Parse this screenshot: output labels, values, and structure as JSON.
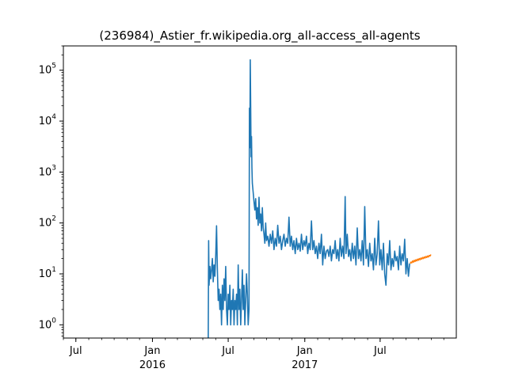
{
  "chart_data": {
    "type": "line",
    "title": "(236984)_Astier_fr.wikipedia.org_all-access_all-agents",
    "xlabel": "",
    "ylabel": "",
    "yscale": "log",
    "xlim": [
      "2015-06-01",
      "2017-12-31"
    ],
    "ylim": [
      0.55,
      300000
    ],
    "grid": false,
    "x_ticks": [
      {
        "date": "2015-07-01",
        "label": "Jul",
        "sublabel": ""
      },
      {
        "date": "2016-01-01",
        "label": "Jan",
        "sublabel": "2016"
      },
      {
        "date": "2016-07-01",
        "label": "Jul",
        "sublabel": ""
      },
      {
        "date": "2017-01-01",
        "label": "Jan",
        "sublabel": "2017"
      },
      {
        "date": "2017-07-01",
        "label": "Jul",
        "sublabel": ""
      }
    ],
    "y_ticks": [
      {
        "value": 1,
        "base": "10",
        "exp": "0"
      },
      {
        "value": 10,
        "base": "10",
        "exp": "1"
      },
      {
        "value": 100,
        "base": "10",
        "exp": "2"
      },
      {
        "value": 1000,
        "base": "10",
        "exp": "3"
      },
      {
        "value": 10000,
        "base": "10",
        "exp": "4"
      },
      {
        "value": 100000,
        "base": "10",
        "exp": "5"
      }
    ],
    "series": [
      {
        "color": "#1f77b4",
        "points": [
          [
            "2016-05-14",
            0.5
          ],
          [
            "2016-05-15",
            45
          ],
          [
            "2016-05-16",
            6
          ],
          [
            "2016-05-18",
            14
          ],
          [
            "2016-05-20",
            8
          ],
          [
            "2016-05-22",
            12
          ],
          [
            "2016-05-24",
            20
          ],
          [
            "2016-05-26",
            7
          ],
          [
            "2016-05-28",
            15
          ],
          [
            "2016-05-30",
            9
          ],
          [
            "2016-06-01",
            22
          ],
          [
            "2016-06-03",
            88
          ],
          [
            "2016-06-05",
            12
          ],
          [
            "2016-06-07",
            3
          ],
          [
            "2016-06-09",
            5
          ],
          [
            "2016-06-11",
            2
          ],
          [
            "2016-06-13",
            4
          ],
          [
            "2016-06-15",
            1
          ],
          [
            "2016-06-17",
            6
          ],
          [
            "2016-06-19",
            2
          ],
          [
            "2016-06-21",
            8
          ],
          [
            "2016-06-23",
            3
          ],
          [
            "2016-06-25",
            14
          ],
          [
            "2016-06-27",
            2
          ],
          [
            "2016-06-29",
            1
          ],
          [
            "2016-07-01",
            4
          ],
          [
            "2016-07-03",
            2
          ],
          [
            "2016-07-05",
            6
          ],
          [
            "2016-07-07",
            1
          ],
          [
            "2016-07-09",
            3
          ],
          [
            "2016-07-11",
            2
          ],
          [
            "2016-07-13",
            5
          ],
          [
            "2016-07-15",
            1
          ],
          [
            "2016-07-17",
            3
          ],
          [
            "2016-07-19",
            2
          ],
          [
            "2016-07-21",
            4
          ],
          [
            "2016-07-23",
            1
          ],
          [
            "2016-07-25",
            15
          ],
          [
            "2016-07-27",
            2
          ],
          [
            "2016-07-29",
            5
          ],
          [
            "2016-07-31",
            1
          ],
          [
            "2016-08-02",
            3
          ],
          [
            "2016-08-04",
            12
          ],
          [
            "2016-08-06",
            2
          ],
          [
            "2016-08-08",
            6
          ],
          [
            "2016-08-10",
            1
          ],
          [
            "2016-08-12",
            3
          ],
          [
            "2016-08-14",
            10
          ],
          [
            "2016-08-16",
            4
          ],
          [
            "2016-08-18",
            1
          ],
          [
            "2016-08-20",
            2
          ],
          [
            "2016-08-21",
            18000
          ],
          [
            "2016-08-22",
            3000
          ],
          [
            "2016-08-23",
            160000
          ],
          [
            "2016-08-24",
            20000
          ],
          [
            "2016-08-25",
            2000
          ],
          [
            "2016-08-26",
            5000
          ],
          [
            "2016-08-27",
            1200
          ],
          [
            "2016-08-28",
            600
          ],
          [
            "2016-08-30",
            400
          ],
          [
            "2016-09-01",
            260
          ],
          [
            "2016-09-03",
            180
          ],
          [
            "2016-09-05",
            300
          ],
          [
            "2016-09-07",
            120
          ],
          [
            "2016-09-09",
            200
          ],
          [
            "2016-09-11",
            90
          ],
          [
            "2016-09-13",
            320
          ],
          [
            "2016-09-15",
            100
          ],
          [
            "2016-09-17",
            150
          ],
          [
            "2016-09-19",
            70
          ],
          [
            "2016-09-21",
            200
          ],
          [
            "2016-09-23",
            80
          ],
          [
            "2016-09-25",
            60
          ],
          [
            "2016-09-27",
            40
          ],
          [
            "2016-09-29",
            100
          ],
          [
            "2016-10-01",
            45
          ],
          [
            "2016-10-04",
            55
          ],
          [
            "2016-10-07",
            35
          ],
          [
            "2016-10-10",
            60
          ],
          [
            "2016-10-13",
            40
          ],
          [
            "2016-10-16",
            70
          ],
          [
            "2016-10-19",
            30
          ],
          [
            "2016-10-22",
            50
          ],
          [
            "2016-10-25",
            35
          ],
          [
            "2016-10-28",
            90
          ],
          [
            "2016-10-31",
            40
          ],
          [
            "2016-11-03",
            55
          ],
          [
            "2016-11-06",
            30
          ],
          [
            "2016-11-09",
            45
          ],
          [
            "2016-11-12",
            60
          ],
          [
            "2016-11-15",
            35
          ],
          [
            "2016-11-18",
            50
          ],
          [
            "2016-11-21",
            40
          ],
          [
            "2016-11-24",
            130
          ],
          [
            "2016-11-27",
            35
          ],
          [
            "2016-11-30",
            55
          ],
          [
            "2016-12-03",
            30
          ],
          [
            "2016-12-06",
            45
          ],
          [
            "2016-12-09",
            25
          ],
          [
            "2016-12-12",
            50
          ],
          [
            "2016-12-15",
            30
          ],
          [
            "2016-12-18",
            40
          ],
          [
            "2016-12-21",
            28
          ],
          [
            "2016-12-24",
            60
          ],
          [
            "2016-12-27",
            30
          ],
          [
            "2016-12-30",
            45
          ],
          [
            "2017-01-02",
            35
          ],
          [
            "2017-01-05",
            55
          ],
          [
            "2017-01-08",
            25
          ],
          [
            "2017-01-11",
            40
          ],
          [
            "2017-01-14",
            30
          ],
          [
            "2017-01-17",
            110
          ],
          [
            "2017-01-20",
            30
          ],
          [
            "2017-01-23",
            45
          ],
          [
            "2017-01-26",
            25
          ],
          [
            "2017-01-29",
            35
          ],
          [
            "2017-02-01",
            20
          ],
          [
            "2017-02-04",
            40
          ],
          [
            "2017-02-07",
            25
          ],
          [
            "2017-02-10",
            60
          ],
          [
            "2017-02-13",
            15
          ],
          [
            "2017-02-16",
            35
          ],
          [
            "2017-02-19",
            20
          ],
          [
            "2017-02-22",
            28
          ],
          [
            "2017-02-25",
            30
          ],
          [
            "2017-02-28",
            22
          ],
          [
            "2017-03-03",
            35
          ],
          [
            "2017-03-06",
            18
          ],
          [
            "2017-03-09",
            30
          ],
          [
            "2017-03-12",
            25
          ],
          [
            "2017-03-15",
            45
          ],
          [
            "2017-03-18",
            20
          ],
          [
            "2017-03-21",
            30
          ],
          [
            "2017-03-24",
            18
          ],
          [
            "2017-03-27",
            50
          ],
          [
            "2017-03-30",
            22
          ],
          [
            "2017-04-02",
            35
          ],
          [
            "2017-04-05",
            20
          ],
          [
            "2017-04-08",
            330
          ],
          [
            "2017-04-10",
            25
          ],
          [
            "2017-04-13",
            60
          ],
          [
            "2017-04-16",
            22
          ],
          [
            "2017-04-19",
            30
          ],
          [
            "2017-04-22",
            18
          ],
          [
            "2017-04-25",
            40
          ],
          [
            "2017-04-28",
            20
          ],
          [
            "2017-05-01",
            35
          ],
          [
            "2017-05-04",
            15
          ],
          [
            "2017-05-07",
            80
          ],
          [
            "2017-05-10",
            20
          ],
          [
            "2017-05-13",
            30
          ],
          [
            "2017-05-16",
            18
          ],
          [
            "2017-05-19",
            45
          ],
          [
            "2017-05-22",
            15
          ],
          [
            "2017-05-25",
            210
          ],
          [
            "2017-05-28",
            20
          ],
          [
            "2017-05-31",
            30
          ],
          [
            "2017-06-03",
            14
          ],
          [
            "2017-06-06",
            40
          ],
          [
            "2017-06-09",
            18
          ],
          [
            "2017-06-12",
            25
          ],
          [
            "2017-06-15",
            12
          ],
          [
            "2017-06-18",
            50
          ],
          [
            "2017-06-21",
            15
          ],
          [
            "2017-06-24",
            25
          ],
          [
            "2017-06-27",
            110
          ],
          [
            "2017-06-30",
            15
          ],
          [
            "2017-07-03",
            30
          ],
          [
            "2017-07-06",
            12
          ],
          [
            "2017-07-09",
            40
          ],
          [
            "2017-07-12",
            10
          ],
          [
            "2017-07-15",
            6
          ],
          [
            "2017-07-18",
            25
          ],
          [
            "2017-07-21",
            15
          ],
          [
            "2017-07-24",
            45
          ],
          [
            "2017-07-27",
            12
          ],
          [
            "2017-07-30",
            20
          ],
          [
            "2017-08-02",
            14
          ],
          [
            "2017-08-05",
            28
          ],
          [
            "2017-08-08",
            18
          ],
          [
            "2017-08-11",
            22
          ],
          [
            "2017-08-14",
            12
          ],
          [
            "2017-08-17",
            35
          ],
          [
            "2017-08-20",
            15
          ],
          [
            "2017-08-23",
            25
          ],
          [
            "2017-08-26",
            18
          ],
          [
            "2017-08-29",
            48
          ],
          [
            "2017-09-01",
            10
          ],
          [
            "2017-09-04",
            20
          ],
          [
            "2017-09-07",
            9
          ],
          [
            "2017-09-10",
            16
          ]
        ]
      },
      {
        "color": "#ff7f0e",
        "points": [
          [
            "2017-09-11",
            16
          ],
          [
            "2017-09-13",
            17
          ],
          [
            "2017-09-15",
            16.5
          ],
          [
            "2017-09-17",
            18
          ],
          [
            "2017-09-19",
            17
          ],
          [
            "2017-09-21",
            18.5
          ],
          [
            "2017-09-23",
            17.5
          ],
          [
            "2017-09-25",
            19
          ],
          [
            "2017-09-27",
            18
          ],
          [
            "2017-09-29",
            19.5
          ],
          [
            "2017-10-01",
            18.5
          ],
          [
            "2017-10-03",
            20
          ],
          [
            "2017-10-05",
            19
          ],
          [
            "2017-10-07",
            20.5
          ],
          [
            "2017-10-09",
            19.5
          ],
          [
            "2017-10-11",
            21
          ],
          [
            "2017-10-13",
            20
          ],
          [
            "2017-10-15",
            21.5
          ],
          [
            "2017-10-17",
            20.5
          ],
          [
            "2017-10-19",
            22
          ],
          [
            "2017-10-21",
            21
          ],
          [
            "2017-10-23",
            22.5
          ],
          [
            "2017-10-25",
            21.5
          ],
          [
            "2017-10-27",
            23
          ],
          [
            "2017-10-29",
            22.5
          ],
          [
            "2017-10-31",
            24
          ]
        ]
      }
    ]
  }
}
